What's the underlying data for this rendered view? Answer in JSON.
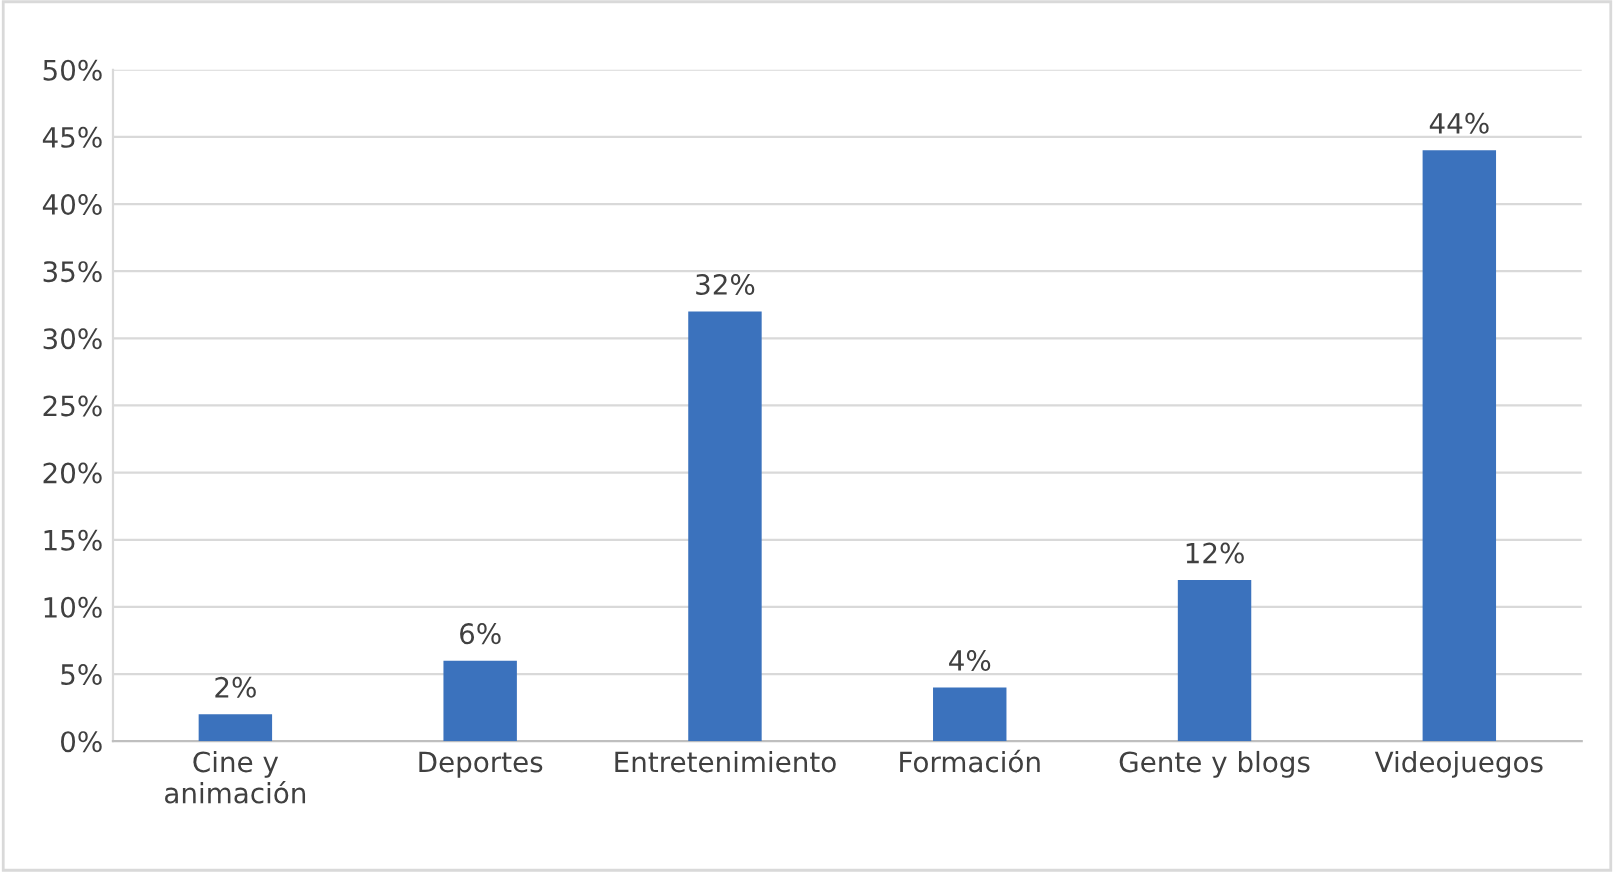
{
  "chart_data": {
    "type": "bar",
    "categories": [
      "Cine y\nanimación",
      "Deportes",
      "Entretenimiento",
      "Formación",
      "Gente y blogs",
      "Videojuegos"
    ],
    "values": [
      2,
      6,
      32,
      4,
      12,
      44
    ],
    "value_labels": [
      "2%",
      "6%",
      "32%",
      "4%",
      "12%",
      "44%"
    ],
    "color": "#3b72bd",
    "ylim": [
      0,
      50
    ],
    "yticks": [
      {
        "value": 0,
        "label": "0%"
      },
      {
        "value": 5,
        "label": "5%"
      },
      {
        "value": 10,
        "label": "10%"
      },
      {
        "value": 15,
        "label": "15%"
      },
      {
        "value": 20,
        "label": "20%"
      },
      {
        "value": 25,
        "label": "25%"
      },
      {
        "value": 30,
        "label": "30%"
      },
      {
        "value": 35,
        "label": "35%"
      },
      {
        "value": 40,
        "label": "40%"
      },
      {
        "value": 45,
        "label": "45%"
      },
      {
        "value": 50,
        "label": "50%"
      }
    ],
    "grid": "y",
    "legend": false
  }
}
